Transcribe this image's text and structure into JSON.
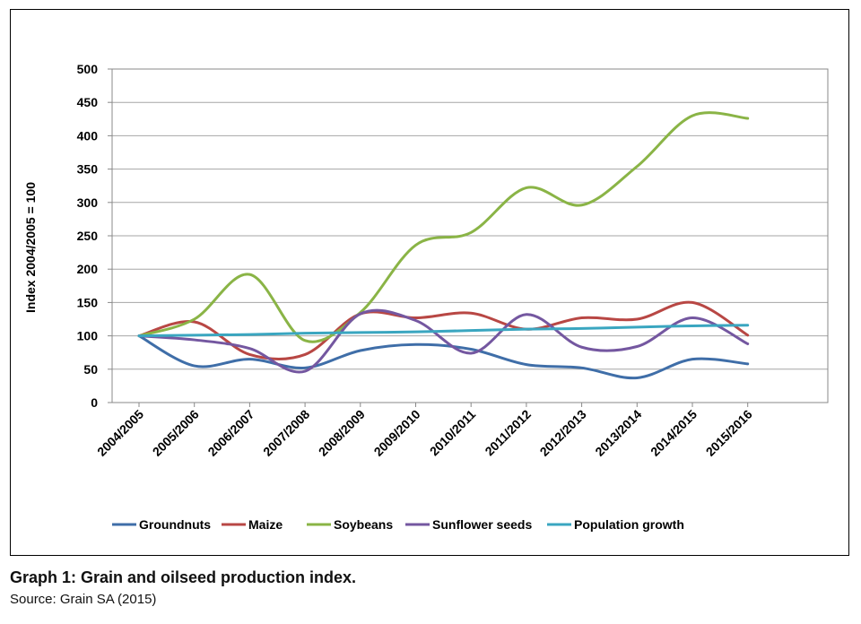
{
  "caption": "Graph 1: Grain and oilseed production index.",
  "source": "Source: Grain SA (2015)",
  "chart_data": {
    "type": "line",
    "ylabel": "Index 2004/2005 = 100",
    "xlabel": "",
    "ylim": [
      0,
      500
    ],
    "yticks": [
      0,
      50,
      100,
      150,
      200,
      250,
      300,
      350,
      400,
      450,
      500
    ],
    "grid": "horizontal",
    "legend_position": "bottom",
    "categories": [
      "2004/2005",
      "2005/2006",
      "2006/2007",
      "2007/2008",
      "2008/2009",
      "2009/2010",
      "2010/2011",
      "2011/2012",
      "2012/2013",
      "2013/2014",
      "2014/2015",
      "2015/2016"
    ],
    "series": [
      {
        "name": "Groundnuts",
        "color": "#3f6ea8",
        "values": [
          100,
          55,
          65,
          52,
          78,
          87,
          80,
          57,
          52,
          37,
          65,
          58
        ]
      },
      {
        "name": "Maize",
        "color": "#b84744",
        "values": [
          100,
          121,
          72,
          72,
          133,
          127,
          134,
          110,
          127,
          125,
          150,
          101
        ]
      },
      {
        "name": "Soybeans",
        "color": "#8ab446",
        "values": [
          100,
          125,
          192,
          93,
          135,
          236,
          255,
          322,
          296,
          354,
          430,
          426
        ]
      },
      {
        "name": "Sunflower seeds",
        "color": "#7457a0",
        "values": [
          100,
          94,
          81,
          47,
          133,
          123,
          74,
          132,
          83,
          84,
          127,
          88
        ]
      },
      {
        "name": "Population growth",
        "color": "#3aa6c0",
        "values": [
          100,
          101,
          102,
          104,
          105,
          106,
          108,
          110,
          111,
          113,
          115,
          116
        ]
      }
    ]
  }
}
